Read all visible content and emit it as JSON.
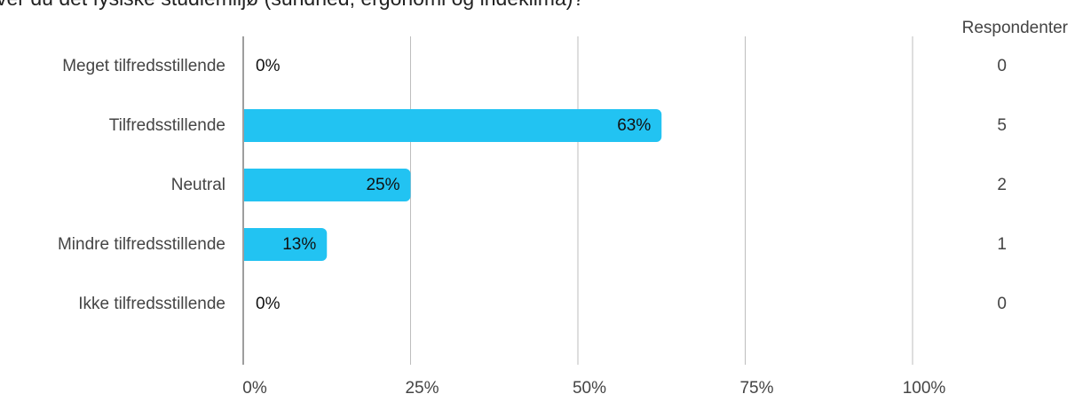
{
  "chart_data": {
    "type": "bar",
    "orientation": "horizontal",
    "title": "ver du det fysiske studiemiljø (sundhed, ergonomi og indeklima)?",
    "categories": [
      "Meget tilfredsstillende",
      "Tilfredsstillende",
      "Neutral",
      "Mindre tilfredsstillende",
      "Ikke tilfredsstillende"
    ],
    "values": [
      0,
      62.5,
      25,
      12.5,
      0
    ],
    "data_labels": [
      "0%",
      "63%",
      "25%",
      "13%",
      "0%"
    ],
    "x_ticks": [
      "0%",
      "25%",
      "50%",
      "75%",
      "100%"
    ],
    "xlim": [
      0,
      100
    ],
    "grid": true,
    "bar_color": "#22c3f2",
    "respondents_header": "Respondenter",
    "respondents": [
      "0",
      "5",
      "2",
      "1",
      "0"
    ]
  }
}
